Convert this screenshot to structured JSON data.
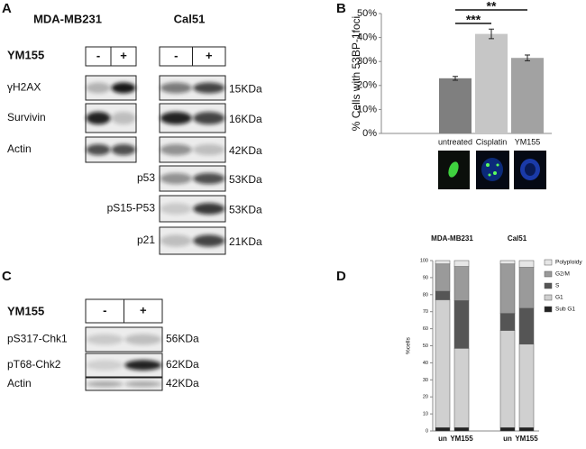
{
  "panel_a": {
    "label": "A",
    "cell_lines": [
      "MDA-MB231",
      "Cal51"
    ],
    "treatment": "YM155",
    "conditions": [
      "-",
      "+"
    ],
    "rows": [
      {
        "protein": "γH2AX",
        "size": "15KDa"
      },
      {
        "protein": "Survivin",
        "size": "16KDa"
      },
      {
        "protein": "Actin",
        "size": "42KDa"
      },
      {
        "protein": "p53",
        "size": "53KDa"
      },
      {
        "protein": "pS15-P53",
        "size": "53KDa"
      },
      {
        "protein": "p21",
        "size": "21KDa"
      }
    ]
  },
  "panel_c": {
    "label": "C",
    "treatment": "YM155",
    "conditions": [
      "-",
      "+"
    ],
    "rows": [
      {
        "protein": "pS317-Chk1",
        "size": "56KDa"
      },
      {
        "protein": "pT68-Chk2",
        "size": "62KDa"
      },
      {
        "protein": "Actin",
        "size": "42KDa"
      }
    ]
  },
  "chart_data": [
    {
      "type": "bar",
      "panel_label": "B",
      "y_label": "% Cells with 53BP-1foci",
      "categories": [
        "untreated",
        "Cisplatin",
        "YM155"
      ],
      "values": [
        23,
        41.5,
        31.5
      ],
      "errors": [
        0.8,
        2,
        1.2
      ],
      "colors": [
        "#7f7f7f",
        "#c6c6c6",
        "#a2a2a2"
      ],
      "annotations": [
        "***",
        "**"
      ],
      "ylim": [
        0,
        50
      ],
      "yticks": [
        {
          "value": 0,
          "label": "0%"
        },
        {
          "value": 10,
          "label": "10%"
        },
        {
          "value": 20,
          "label": "20%"
        },
        {
          "value": 30,
          "label": "30%"
        },
        {
          "value": 40,
          "label": "40%"
        },
        {
          "value": 50,
          "label": "50%"
        }
      ]
    },
    {
      "type": "stacked_bar",
      "panel_label": "D",
      "y_label": "%cells",
      "groups": [
        "MDA-MB231",
        "Cal51"
      ],
      "categories": [
        "un",
        "YM155",
        "un",
        "YM155"
      ],
      "series": [
        {
          "name": "Sub G1",
          "color": "#222222",
          "values": [
            2,
            2,
            2,
            2
          ]
        },
        {
          "name": "G1",
          "color": "#d0d0d0",
          "values": [
            75,
            46.5,
            57,
            49
          ]
        },
        {
          "name": "S",
          "color": "#555555",
          "values": [
            5,
            28,
            10,
            21
          ]
        },
        {
          "name": "G2/M",
          "color": "#9a9a9a",
          "values": [
            16,
            20,
            29,
            24
          ]
        },
        {
          "name": "Polyploidy",
          "color": "#e6e6e6",
          "values": [
            2,
            3.5,
            2,
            4
          ]
        }
      ],
      "ylim": [
        0,
        100
      ],
      "yticks": [
        0,
        10,
        20,
        30,
        40,
        50,
        60,
        70,
        80,
        90,
        100
      ],
      "legend": "right"
    }
  ]
}
